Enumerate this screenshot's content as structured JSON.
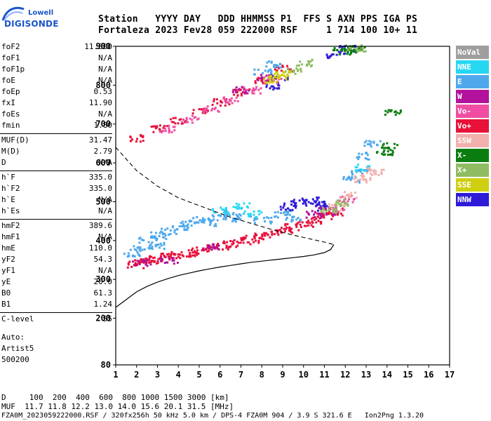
{
  "header": {
    "col_labels": "Station   YYYY DAY   DDD HHMMSS P1  FFS S AXN PPS IGA PS",
    "col_values": "Fortaleza 2023 Fev28 059 222000 RSF     1 714 100 10+ 11"
  },
  "logo": {
    "line1": "Lowell",
    "line2": "DIGISONDE"
  },
  "params_a": [
    {
      "k": "foF2",
      "v": "11.300"
    },
    {
      "k": "foF1",
      "v": "N/A"
    },
    {
      "k": "foF1p",
      "v": "N/A"
    },
    {
      "k": "foE",
      "v": "N/A"
    },
    {
      "k": "foEp",
      "v": "0.53"
    },
    {
      "k": "fxI",
      "v": "11.90"
    },
    {
      "k": "foEs",
      "v": "N/A"
    },
    {
      "k": "fmin",
      "v": "1.80"
    }
  ],
  "params_b": [
    {
      "k": "MUF(D)",
      "v": "31.47"
    },
    {
      "k": "M(D)",
      "v": "2.79"
    },
    {
      "k": "D",
      "v": "N/A"
    }
  ],
  "params_c": [
    {
      "k": "h`F",
      "v": "335.0"
    },
    {
      "k": "h`F2",
      "v": "335.0"
    },
    {
      "k": "h`E",
      "v": "N/A"
    },
    {
      "k": "h`Es",
      "v": "N/A"
    }
  ],
  "params_d": [
    {
      "k": "hmF2",
      "v": "389.6"
    },
    {
      "k": "hmF1",
      "v": "N/A"
    },
    {
      "k": "hmE",
      "v": "110.0"
    },
    {
      "k": "yF2",
      "v": "54.3"
    },
    {
      "k": "yF1",
      "v": "N/A"
    },
    {
      "k": "yE",
      "v": "20.0"
    },
    {
      "k": "B0",
      "v": "61.3"
    },
    {
      "k": "B1",
      "v": "1.24"
    }
  ],
  "params_e": [
    {
      "k": "C-level",
      "v": "55"
    }
  ],
  "auto": {
    "line1": "Auto:",
    "line2": "Artist5",
    "line3": "500200"
  },
  "legend": [
    {
      "label": "NoVal",
      "color": "#9e9e9e"
    },
    {
      "label": "NNE",
      "color": "#26d7f2"
    },
    {
      "label": "E",
      "color": "#4fa8ec"
    },
    {
      "label": "W",
      "color": "#b2129c"
    },
    {
      "label": "Vo-",
      "color": "#ef4ea2"
    },
    {
      "label": "Vo+",
      "color": "#e8113a"
    },
    {
      "label": "SSW",
      "color": "#f2b0ac"
    },
    {
      "label": "X-",
      "color": "#0b7d10"
    },
    {
      "label": "X+",
      "color": "#8fbc62"
    },
    {
      "label": "SSE",
      "color": "#cfcf12"
    },
    {
      "label": "NNW",
      "color": "#2e1bd8"
    }
  ],
  "footer": {
    "d_row": "D     100  200  400  600  800 1000 1500 3000 [km]",
    "muf_row": "MUF  11.7 11.8 12.2 13.0 14.0 15.6 20.1 31.5 [MHz]",
    "file_row": "FZA0M_2023059222000.RSF / 320fx256h 50 kHz 5.0 km / DPS-4 FZA0M 904 / 3.9 S 321.6 E   Ion2Png 1.3.20"
  },
  "chart_data": {
    "type": "scatter",
    "xlim": [
      1,
      17
    ],
    "ylim": [
      80,
      900
    ],
    "xticks": [
      1,
      2,
      3,
      4,
      5,
      6,
      7,
      8,
      9,
      10,
      11,
      12,
      13,
      14,
      15,
      16,
      17
    ],
    "yticks": [
      80,
      200,
      300,
      400,
      500,
      600,
      700,
      800,
      900
    ],
    "series": [
      {
        "name": "Vo+",
        "color": "#e8113a",
        "points": [
          [
            1.9,
            340
          ],
          [
            2.2,
            347
          ],
          [
            2.6,
            352
          ],
          [
            3.0,
            356
          ],
          [
            3.5,
            360
          ],
          [
            4.0,
            365
          ],
          [
            4.5,
            370
          ],
          [
            5.0,
            376
          ],
          [
            5.5,
            382
          ],
          [
            6.0,
            388
          ],
          [
            6.5,
            394
          ],
          [
            7.0,
            400
          ],
          [
            7.5,
            406
          ],
          [
            8.0,
            414
          ],
          [
            8.5,
            421
          ],
          [
            9.0,
            428
          ],
          [
            9.5,
            436
          ],
          [
            10.0,
            445
          ],
          [
            10.5,
            455
          ],
          [
            11.0,
            466
          ],
          [
            11.4,
            476
          ],
          [
            2.0,
            665
          ],
          [
            3.0,
            690
          ],
          [
            4.0,
            712
          ],
          [
            5.0,
            735
          ],
          [
            6.0,
            758
          ],
          [
            7.0,
            785
          ],
          [
            8.0,
            815
          ],
          [
            9.0,
            845
          ]
        ]
      },
      {
        "name": "E",
        "color": "#4fa8ec",
        "points": [
          [
            1.8,
            370
          ],
          [
            2.5,
            405
          ],
          [
            3.0,
            415
          ],
          [
            3.5,
            425
          ],
          [
            4.0,
            435
          ],
          [
            4.5,
            445
          ],
          [
            5.0,
            455
          ],
          [
            5.5,
            448
          ],
          [
            6.0,
            470
          ],
          [
            6.5,
            460
          ],
          [
            7.0,
            465
          ],
          [
            8.0,
            455
          ],
          [
            9.0,
            470
          ],
          [
            9.5,
            460
          ],
          [
            2.2,
            380
          ],
          [
            3.0,
            390
          ],
          [
            12.2,
            560
          ],
          [
            12.6,
            580
          ],
          [
            12.9,
            620
          ],
          [
            13.2,
            650
          ],
          [
            8.0,
            835
          ],
          [
            8.5,
            855
          ]
        ]
      },
      {
        "name": "NNE",
        "color": "#26d7f2",
        "points": [
          [
            6.0,
            480
          ],
          [
            7.0,
            490
          ],
          [
            7.5,
            470
          ],
          [
            12.8,
            590
          ]
        ]
      },
      {
        "name": "NNW",
        "color": "#2e1bd8",
        "points": [
          [
            9.2,
            490
          ],
          [
            9.8,
            500
          ],
          [
            10.3,
            505
          ],
          [
            10.8,
            495
          ],
          [
            11.0,
            488
          ],
          [
            8.5,
            800
          ],
          [
            8.8,
            820
          ],
          [
            11.5,
            880
          ],
          [
            12.0,
            895
          ]
        ]
      },
      {
        "name": "W",
        "color": "#b2129c",
        "points": [
          [
            2.2,
            345
          ],
          [
            3.5,
            352
          ],
          [
            5.5,
            385
          ],
          [
            10.5,
            470
          ],
          [
            11.1,
            478
          ],
          [
            7.0,
            790
          ],
          [
            8.2,
            820
          ]
        ]
      },
      {
        "name": "Vo-",
        "color": "#ef4ea2",
        "points": [
          [
            3.5,
            690
          ],
          [
            4.5,
            715
          ],
          [
            5.5,
            740
          ],
          [
            6.5,
            765
          ],
          [
            7.5,
            790
          ],
          [
            8.5,
            815
          ],
          [
            11.5,
            485
          ],
          [
            12.0,
            510
          ]
        ]
      },
      {
        "name": "SSW",
        "color": "#f2b0ac",
        "points": [
          [
            11.6,
            490
          ],
          [
            12.1,
            520
          ],
          [
            12.8,
            560
          ],
          [
            13.1,
            575
          ],
          [
            13.4,
            580
          ]
        ]
      },
      {
        "name": "X-",
        "color": "#0b7d10",
        "points": [
          [
            11.8,
            890
          ],
          [
            12.3,
            895
          ],
          [
            12.5,
            895
          ],
          [
            13.9,
            630
          ],
          [
            14.1,
            645
          ],
          [
            14.2,
            730
          ]
        ]
      },
      {
        "name": "X+",
        "color": "#8fbc62",
        "points": [
          [
            11.2,
            480
          ],
          [
            11.8,
            500
          ],
          [
            9.5,
            840
          ],
          [
            10.0,
            860
          ],
          [
            12.5,
            898
          ]
        ]
      },
      {
        "name": "SSE",
        "color": "#cfcf12",
        "points": [
          [
            8.5,
            815
          ],
          [
            8.7,
            825
          ],
          [
            9.0,
            830
          ]
        ]
      }
    ],
    "profile_solid": [
      [
        1,
        228
      ],
      [
        1.5,
        248
      ],
      [
        2,
        268
      ],
      [
        2.5,
        282
      ],
      [
        3,
        293
      ],
      [
        3.5,
        302
      ],
      [
        4,
        310
      ],
      [
        4.5,
        316
      ],
      [
        5,
        322
      ],
      [
        5.5,
        327
      ],
      [
        6,
        332
      ],
      [
        6.5,
        336
      ],
      [
        7,
        340
      ],
      [
        7.5,
        344
      ],
      [
        8,
        347
      ],
      [
        8.5,
        350
      ],
      [
        9,
        353
      ],
      [
        9.5,
        356
      ],
      [
        10,
        359
      ],
      [
        10.5,
        363
      ],
      [
        11,
        369
      ],
      [
        11.3,
        377
      ],
      [
        11.45,
        389.6
      ]
    ],
    "profile_dashed": [
      [
        1,
        640
      ],
      [
        1.5,
        610
      ],
      [
        2,
        580
      ],
      [
        2.5,
        560
      ],
      [
        3,
        540
      ],
      [
        3.5,
        525
      ],
      [
        4,
        510
      ],
      [
        4.5,
        500
      ],
      [
        5,
        490
      ],
      [
        5.5,
        480
      ],
      [
        6,
        470
      ],
      [
        6.5,
        460
      ],
      [
        7,
        452
      ],
      [
        7.5,
        444
      ],
      [
        8,
        436
      ],
      [
        8.5,
        428
      ],
      [
        9,
        421
      ],
      [
        9.5,
        414
      ],
      [
        10,
        408
      ],
      [
        10.5,
        402
      ],
      [
        11,
        396
      ],
      [
        11.45,
        389.6
      ]
    ]
  }
}
